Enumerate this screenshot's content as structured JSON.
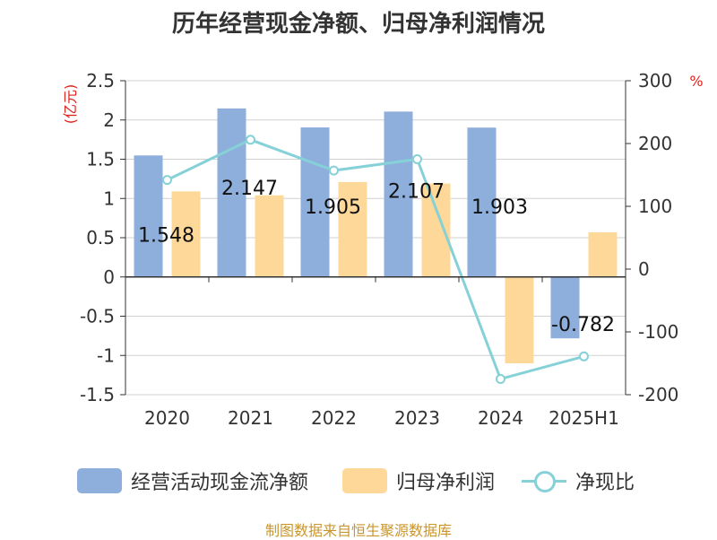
{
  "chart_data": {
    "type": "bar",
    "title": "历年经营现金净额、归母净利润情况",
    "categories": [
      "2020",
      "2021",
      "2022",
      "2023",
      "2024",
      "2025H1"
    ],
    "left_axis": {
      "unit": "(亿元)",
      "ylim": [
        -1.5,
        2.5
      ],
      "ticks": [
        "2.5",
        "2",
        "1.5",
        "1",
        "0.5",
        "0",
        "-0.5",
        "-1",
        "-1.5"
      ]
    },
    "right_axis": {
      "unit": "%",
      "ylim": [
        -200,
        300
      ],
      "ticks": [
        "300",
        "200",
        "100",
        "0",
        "-100",
        "-200"
      ]
    },
    "series": [
      {
        "name": "经营活动现金流净额",
        "type": "bar",
        "axis": "left",
        "color": "#8eaedb",
        "values": [
          1.548,
          2.147,
          1.905,
          2.107,
          1.903,
          -0.782
        ],
        "labels": [
          "1.548",
          "2.147",
          "1.905",
          "2.107",
          "1.903",
          "-0.782"
        ]
      },
      {
        "name": "归母净利润",
        "type": "bar",
        "axis": "left",
        "color": "#fdd898",
        "values": [
          1.09,
          1.04,
          1.21,
          1.19,
          -1.1,
          0.57
        ]
      },
      {
        "name": "净现比",
        "type": "line",
        "axis": "right",
        "color": "#86d1d8",
        "values": [
          142,
          206,
          157,
          175,
          -175,
          -139
        ]
      }
    ],
    "grid": true,
    "legend": "bottom"
  },
  "source": "制图数据来自恒生聚源数据库"
}
